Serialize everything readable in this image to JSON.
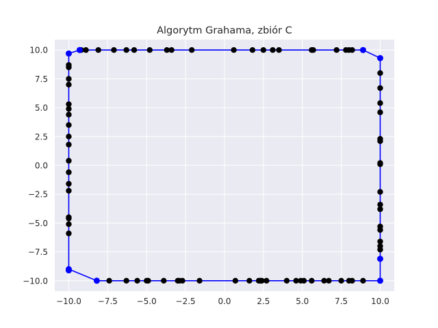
{
  "chart_data": {
    "type": "scatter",
    "title": "Algorytm Grahama, zbiór C",
    "xlabel": "",
    "ylabel": "",
    "xlim": [
      -10.9,
      10.9
    ],
    "ylim": [
      -10.9,
      10.9
    ],
    "x_ticks": [
      -10.0,
      -7.5,
      -5.0,
      -2.5,
      0.0,
      2.5,
      5.0,
      7.5,
      10.0
    ],
    "y_ticks": [
      -10.0,
      -7.5,
      -5.0,
      -2.5,
      0.0,
      2.5,
      5.0,
      7.5,
      10.0
    ],
    "x_tick_labels": [
      "−10.0",
      "−7.5",
      "−5.0",
      "−2.5",
      "0.0",
      "2.5",
      "5.0",
      "7.5",
      "10.0"
    ],
    "y_tick_labels": [
      "−10.0",
      "−7.5",
      "−5.0",
      "−2.5",
      "0.0",
      "2.5",
      "5.0",
      "7.5",
      "10.0"
    ],
    "grid": true,
    "background_color": "#eaeaf2",
    "grid_color": "#ffffff",
    "point_color": "#000000",
    "hull_color": "#0000ff",
    "points": [
      [
        -9.2,
        10
      ],
      [
        -8.9,
        10
      ],
      [
        -8.1,
        10
      ],
      [
        -7.1,
        10
      ],
      [
        -6.3,
        10
      ],
      [
        -5.8,
        10
      ],
      [
        -4.8,
        10
      ],
      [
        -3.7,
        10
      ],
      [
        -3.4,
        10
      ],
      [
        -2.1,
        10
      ],
      [
        0.6,
        10
      ],
      [
        1.8,
        10
      ],
      [
        2.5,
        10
      ],
      [
        3.1,
        10
      ],
      [
        3.5,
        10
      ],
      [
        5.6,
        10
      ],
      [
        5.7,
        10
      ],
      [
        7.2,
        10
      ],
      [
        7.8,
        10
      ],
      [
        8.0,
        10
      ],
      [
        8.2,
        10
      ],
      [
        10,
        8.0
      ],
      [
        10,
        6.7
      ],
      [
        10,
        5.4
      ],
      [
        10,
        4.6
      ],
      [
        10,
        2.3
      ],
      [
        10,
        2.1
      ],
      [
        10,
        0.2
      ],
      [
        10,
        0.1
      ],
      [
        10,
        -2.3
      ],
      [
        10,
        -3.4
      ],
      [
        10,
        -3.8
      ],
      [
        10,
        -5.3
      ],
      [
        10,
        -5.6
      ],
      [
        10,
        -6.6
      ],
      [
        10,
        -7.0
      ],
      [
        10,
        -7.3
      ],
      [
        -10,
        8.7
      ],
      [
        -10,
        8.5
      ],
      [
        -10,
        7.5
      ],
      [
        -10,
        7.0
      ],
      [
        -10,
        5.3
      ],
      [
        -10,
        4.9
      ],
      [
        -10,
        4.4
      ],
      [
        -10,
        3.5
      ],
      [
        -10,
        2.5
      ],
      [
        -10,
        1.8
      ],
      [
        -10,
        0.4
      ],
      [
        -10,
        -0.6
      ],
      [
        -10,
        -1.6
      ],
      [
        -10,
        -2.2
      ],
      [
        -10,
        -4.5
      ],
      [
        -10,
        -4.6
      ],
      [
        -10,
        -5.1
      ],
      [
        -10,
        -5.9
      ],
      [
        -7.4,
        -10
      ],
      [
        -6.3,
        -10
      ],
      [
        -5.6,
        -10
      ],
      [
        -5.0,
        -10
      ],
      [
        -4.9,
        -10
      ],
      [
        -3.9,
        -10
      ],
      [
        -3.0,
        -10
      ],
      [
        -2.9,
        -10
      ],
      [
        -2.7,
        -10
      ],
      [
        -1.6,
        -10
      ],
      [
        0.7,
        -10
      ],
      [
        1.6,
        -10
      ],
      [
        2.2,
        -10
      ],
      [
        2.3,
        -10
      ],
      [
        2.4,
        -10
      ],
      [
        2.7,
        -10
      ],
      [
        4.0,
        -10
      ],
      [
        4.6,
        -10
      ],
      [
        4.9,
        -10
      ],
      [
        5.1,
        -10
      ],
      [
        5.6,
        -10
      ],
      [
        6.4,
        -10
      ],
      [
        6.7,
        -10
      ],
      [
        7.5,
        -10
      ],
      [
        8.0,
        -10
      ],
      [
        8.2,
        -10
      ],
      [
        8.9,
        -10
      ]
    ],
    "hull": [
      [
        -10,
        9.7
      ],
      [
        -9.3,
        10
      ],
      [
        8.9,
        10
      ],
      [
        10,
        9.3
      ],
      [
        10,
        -8.1
      ],
      [
        10,
        -10
      ],
      [
        -8.2,
        -10
      ],
      [
        -10,
        -9.0
      ],
      [
        -10,
        -9.1
      ]
    ]
  }
}
